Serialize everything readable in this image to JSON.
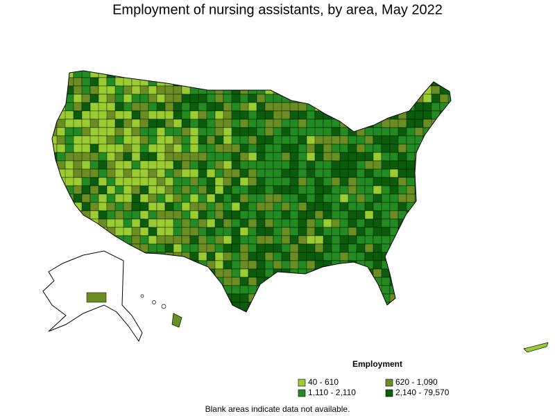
{
  "title": "Employment of nursing assistants, by area, May 2022",
  "legend": {
    "title": "Employment",
    "items": [
      {
        "label": "40 - 610",
        "color": "#9acd32"
      },
      {
        "label": "620 - 1,090",
        "color": "#6b8e23"
      },
      {
        "label": "1,110 - 2,110",
        "color": "#228b22"
      },
      {
        "label": "2,140 - 79,570",
        "color": "#0b5d0b"
      }
    ]
  },
  "footnote": "Blank areas indicate data not available."
}
